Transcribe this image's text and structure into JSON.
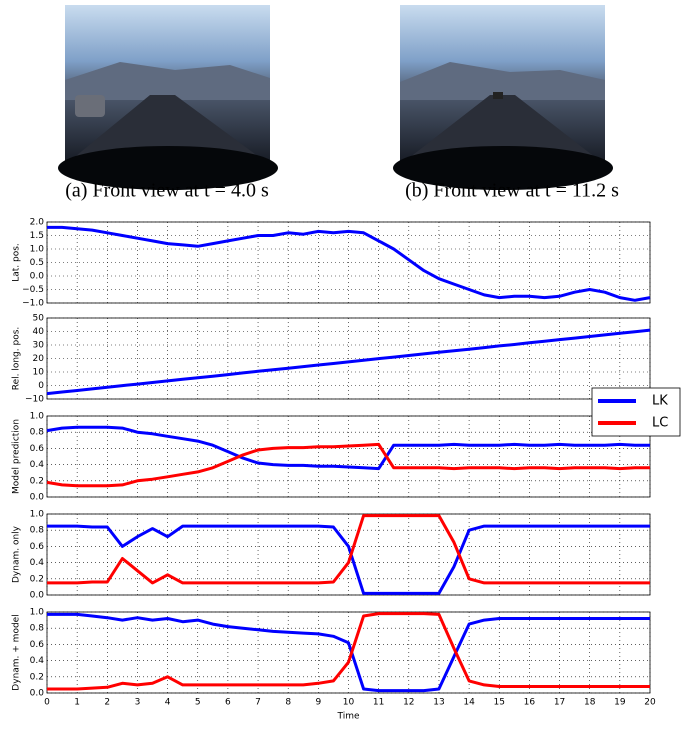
{
  "captions": [
    "(a) Front view at t = 4.0 s",
    "(b) Front view at t = 11.2 s"
  ],
  "chart_data": [
    {
      "type": "line",
      "ylabel": "Lat. pos.",
      "color": "#0000ff",
      "xlim": [
        0,
        20
      ],
      "ylim": [
        -1,
        2
      ],
      "yticks": [
        {
          "value": -1,
          "label": "−1.0"
        },
        {
          "value": -0.5,
          "label": "−0.5"
        },
        {
          "value": 0,
          "label": "0.0"
        },
        {
          "value": 0.5,
          "label": "0.5"
        },
        {
          "value": 1,
          "label": "1.0"
        },
        {
          "value": 1.5,
          "label": "1.5"
        },
        {
          "value": 2,
          "label": "2.0"
        }
      ],
      "grid": true,
      "x": [
        0,
        0.5,
        1,
        1.5,
        2,
        2.5,
        3,
        3.5,
        4,
        4.5,
        5,
        5.5,
        6,
        6.5,
        7,
        7.5,
        8,
        8.5,
        9,
        9.5,
        10,
        10.5,
        11,
        11.5,
        12,
        12.5,
        13,
        13.5,
        14,
        14.5,
        15,
        15.5,
        16,
        16.5,
        17,
        17.5,
        18,
        18.5,
        19,
        19.5,
        20
      ],
      "values": [
        1.8,
        1.8,
        1.75,
        1.7,
        1.6,
        1.5,
        1.4,
        1.3,
        1.2,
        1.15,
        1.1,
        1.2,
        1.3,
        1.4,
        1.5,
        1.5,
        1.6,
        1.55,
        1.65,
        1.6,
        1.65,
        1.6,
        1.3,
        1.0,
        0.6,
        0.2,
        -0.1,
        -0.3,
        -0.5,
        -0.7,
        -0.8,
        -0.75,
        -0.75,
        -0.8,
        -0.75,
        -0.6,
        -0.5,
        -0.6,
        -0.8,
        -0.9,
        -0.8
      ]
    },
    {
      "type": "line",
      "ylabel": "Rel. long. pos.",
      "color": "#0000ff",
      "xlim": [
        0,
        20
      ],
      "ylim": [
        -10,
        50
      ],
      "yticks": [
        {
          "value": -10,
          "label": "−10"
        },
        0,
        10,
        20,
        30,
        40,
        50
      ],
      "grid": true,
      "x": [
        0,
        0.5,
        1,
        1.5,
        2,
        2.5,
        3,
        3.5,
        4,
        4.5,
        5,
        5.5,
        6,
        6.5,
        7,
        7.5,
        8,
        8.5,
        9,
        9.5,
        10,
        10.5,
        11,
        11.5,
        12,
        12.5,
        13,
        13.5,
        14,
        14.5,
        15,
        15.5,
        16,
        16.5,
        17,
        17.5,
        18,
        18.5,
        19,
        19.5,
        20
      ],
      "values": [
        -6,
        -4.8,
        -3.7,
        -2.5,
        -1.3,
        -0.1,
        1,
        2.2,
        3.4,
        4.6,
        5.8,
        6.9,
        8.1,
        9.3,
        10.5,
        11.6,
        12.8,
        14,
        15.2,
        16.3,
        17.5,
        18.7,
        19.9,
        21,
        22.2,
        23.4,
        24.6,
        25.7,
        26.9,
        28.1,
        29.3,
        30.4,
        31.6,
        32.8,
        34,
        35.1,
        36.3,
        37.5,
        38.7,
        39.8,
        41
      ]
    },
    {
      "type": "line",
      "ylabel": "Model prediction",
      "xlim": [
        0,
        20
      ],
      "ylim": [
        0,
        1
      ],
      "yticks": [
        {
          "value": 0,
          "label": "0.0"
        },
        {
          "value": 0.2,
          "label": "0.2"
        },
        {
          "value": 0.4,
          "label": "0.4"
        },
        {
          "value": 0.6,
          "label": "0.6"
        },
        {
          "value": 0.8,
          "label": "0.8"
        },
        {
          "value": 1,
          "label": "1.0"
        }
      ],
      "grid": true,
      "legend": "right",
      "x": [
        0,
        0.5,
        1,
        1.5,
        2,
        2.5,
        3,
        3.5,
        4,
        4.5,
        5,
        5.5,
        6,
        6.5,
        7,
        7.5,
        8,
        8.5,
        9,
        9.5,
        10,
        10.5,
        11,
        11.5,
        12,
        12.5,
        13,
        13.5,
        14,
        14.5,
        15,
        15.5,
        16,
        16.5,
        17,
        17.5,
        18,
        18.5,
        19,
        19.5,
        20
      ],
      "series": [
        {
          "name": "LK",
          "color": "#0000ff",
          "values": [
            0.82,
            0.85,
            0.86,
            0.86,
            0.86,
            0.85,
            0.8,
            0.78,
            0.75,
            0.72,
            0.69,
            0.64,
            0.56,
            0.48,
            0.42,
            0.4,
            0.39,
            0.39,
            0.38,
            0.38,
            0.37,
            0.36,
            0.35,
            0.64,
            0.64,
            0.64,
            0.64,
            0.65,
            0.64,
            0.64,
            0.64,
            0.65,
            0.64,
            0.64,
            0.65,
            0.64,
            0.64,
            0.64,
            0.65,
            0.64,
            0.64
          ]
        },
        {
          "name": "LC",
          "color": "#ff0000",
          "values": [
            0.18,
            0.15,
            0.14,
            0.14,
            0.14,
            0.15,
            0.2,
            0.22,
            0.25,
            0.28,
            0.31,
            0.36,
            0.44,
            0.52,
            0.58,
            0.6,
            0.61,
            0.61,
            0.62,
            0.62,
            0.63,
            0.64,
            0.65,
            0.36,
            0.36,
            0.36,
            0.36,
            0.35,
            0.36,
            0.36,
            0.36,
            0.35,
            0.36,
            0.36,
            0.35,
            0.36,
            0.36,
            0.36,
            0.35,
            0.36,
            0.36
          ]
        }
      ]
    },
    {
      "type": "line",
      "ylabel": "Dynam. only",
      "xlim": [
        0,
        20
      ],
      "ylim": [
        0,
        1
      ],
      "yticks": [
        {
          "value": 0,
          "label": "0.0"
        },
        {
          "value": 0.2,
          "label": "0.2"
        },
        {
          "value": 0.4,
          "label": "0.4"
        },
        {
          "value": 0.6,
          "label": "0.6"
        },
        {
          "value": 0.8,
          "label": "0.8"
        },
        {
          "value": 1,
          "label": "1.0"
        }
      ],
      "grid": true,
      "x": [
        0,
        0.5,
        1,
        1.5,
        2,
        2.5,
        3,
        3.5,
        4,
        4.5,
        5,
        5.5,
        6,
        6.5,
        7,
        7.5,
        8,
        8.5,
        9,
        9.5,
        10,
        10.5,
        11,
        11.5,
        12,
        12.5,
        13,
        13.5,
        14,
        14.5,
        15,
        15.5,
        16,
        16.5,
        17,
        17.5,
        18,
        18.5,
        19,
        19.5,
        20
      ],
      "series": [
        {
          "color": "#0000ff",
          "values": [
            0.85,
            0.85,
            0.85,
            0.84,
            0.84,
            0.6,
            0.72,
            0.82,
            0.72,
            0.85,
            0.85,
            0.85,
            0.85,
            0.85,
            0.85,
            0.85,
            0.85,
            0.85,
            0.85,
            0.84,
            0.6,
            0.02,
            0.02,
            0.02,
            0.02,
            0.02,
            0.02,
            0.35,
            0.8,
            0.85,
            0.85,
            0.85,
            0.85,
            0.85,
            0.85,
            0.85,
            0.85,
            0.85,
            0.85,
            0.85,
            0.85
          ]
        },
        {
          "color": "#ff0000",
          "values": [
            0.15,
            0.15,
            0.15,
            0.16,
            0.16,
            0.45,
            0.3,
            0.15,
            0.25,
            0.15,
            0.15,
            0.15,
            0.15,
            0.15,
            0.15,
            0.15,
            0.15,
            0.15,
            0.15,
            0.16,
            0.4,
            0.98,
            0.98,
            0.98,
            0.98,
            0.98,
            0.98,
            0.65,
            0.2,
            0.15,
            0.15,
            0.15,
            0.15,
            0.15,
            0.15,
            0.15,
            0.15,
            0.15,
            0.15,
            0.15,
            0.15
          ]
        }
      ]
    },
    {
      "type": "line",
      "ylabel": "Dynam. + model",
      "xlabel": "Time",
      "xlim": [
        0,
        20
      ],
      "ylim": [
        0,
        1
      ],
      "xticks": [
        0,
        1,
        2,
        3,
        4,
        5,
        6,
        7,
        8,
        9,
        10,
        11,
        12,
        13,
        14,
        15,
        16,
        17,
        18,
        19,
        20
      ],
      "yticks": [
        {
          "value": 0,
          "label": "0.0"
        },
        {
          "value": 0.2,
          "label": "0.2"
        },
        {
          "value": 0.4,
          "label": "0.4"
        },
        {
          "value": 0.6,
          "label": "0.6"
        },
        {
          "value": 0.8,
          "label": "0.8"
        },
        {
          "value": 1,
          "label": "1.0"
        }
      ],
      "grid": true,
      "x": [
        0,
        0.5,
        1,
        1.5,
        2,
        2.5,
        3,
        3.5,
        4,
        4.5,
        5,
        5.5,
        6,
        6.5,
        7,
        7.5,
        8,
        8.5,
        9,
        9.5,
        10,
        10.5,
        11,
        11.5,
        12,
        12.5,
        13,
        13.5,
        14,
        14.5,
        15,
        15.5,
        16,
        16.5,
        17,
        17.5,
        18,
        18.5,
        19,
        19.5,
        20
      ],
      "series": [
        {
          "color": "#0000ff",
          "values": [
            0.97,
            0.97,
            0.97,
            0.95,
            0.93,
            0.9,
            0.93,
            0.9,
            0.92,
            0.88,
            0.9,
            0.85,
            0.82,
            0.8,
            0.78,
            0.76,
            0.75,
            0.74,
            0.73,
            0.7,
            0.62,
            0.05,
            0.03,
            0.03,
            0.03,
            0.03,
            0.05,
            0.45,
            0.85,
            0.9,
            0.92,
            0.92,
            0.92,
            0.92,
            0.92,
            0.92,
            0.92,
            0.92,
            0.92,
            0.92,
            0.92
          ]
        },
        {
          "color": "#ff0000",
          "values": [
            0.05,
            0.05,
            0.05,
            0.06,
            0.07,
            0.12,
            0.1,
            0.12,
            0.2,
            0.1,
            0.1,
            0.1,
            0.1,
            0.1,
            0.1,
            0.1,
            0.1,
            0.1,
            0.12,
            0.15,
            0.38,
            0.95,
            0.98,
            0.98,
            0.98,
            0.98,
            0.97,
            0.55,
            0.15,
            0.1,
            0.08,
            0.08,
            0.08,
            0.08,
            0.08,
            0.08,
            0.08,
            0.08,
            0.08,
            0.08,
            0.08
          ]
        }
      ]
    }
  ]
}
